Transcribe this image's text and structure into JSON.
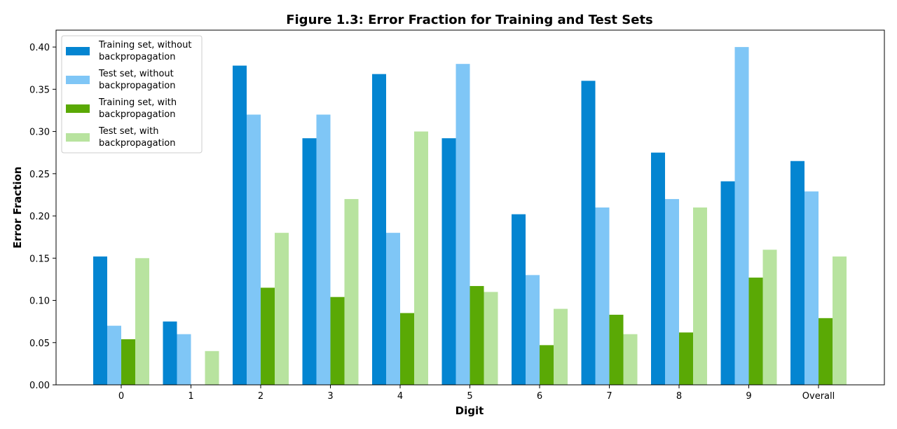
{
  "chart_data": {
    "type": "bar",
    "title": "Figure 1.3: Error Fraction for Training and Test Sets",
    "xlabel": "Digit",
    "ylabel": "Error Fraction",
    "categories": [
      "0",
      "1",
      "2",
      "3",
      "4",
      "5",
      "6",
      "7",
      "8",
      "9",
      "Overall"
    ],
    "ylim": [
      0,
      0.42
    ],
    "yticks": [
      "0.00",
      "0.05",
      "0.10",
      "0.15",
      "0.20",
      "0.25",
      "0.30",
      "0.35",
      "0.40"
    ],
    "grid": false,
    "legend_position": "top-left",
    "series": [
      {
        "name": "Training set, without backpropagation",
        "name_lines": [
          "Training set, without",
          "backpropagation"
        ],
        "color": "#0485d1",
        "values": [
          0.152,
          0.075,
          0.378,
          0.292,
          0.368,
          0.292,
          0.202,
          0.36,
          0.275,
          0.241,
          0.265
        ]
      },
      {
        "name": "Test set, without backpropagation",
        "name_lines": [
          "Test set, without",
          "backpropagation"
        ],
        "color": "#7fc6f6",
        "values": [
          0.07,
          0.06,
          0.32,
          0.32,
          0.18,
          0.38,
          0.13,
          0.21,
          0.22,
          0.4,
          0.229
        ]
      },
      {
        "name": "Training set, with backpropagation",
        "name_lines": [
          "Training set, with",
          "backpropagation"
        ],
        "color": "#5aa905",
        "values": [
          0.054,
          0.0,
          0.115,
          0.104,
          0.085,
          0.117,
          0.047,
          0.083,
          0.062,
          0.127,
          0.079
        ]
      },
      {
        "name": "Test set, with backpropagation",
        "name_lines": [
          "Test set, with",
          "backpropagation"
        ],
        "color": "#b8e39f",
        "values": [
          0.15,
          0.04,
          0.18,
          0.22,
          0.3,
          0.11,
          0.09,
          0.06,
          0.21,
          0.16,
          0.152
        ]
      }
    ]
  }
}
